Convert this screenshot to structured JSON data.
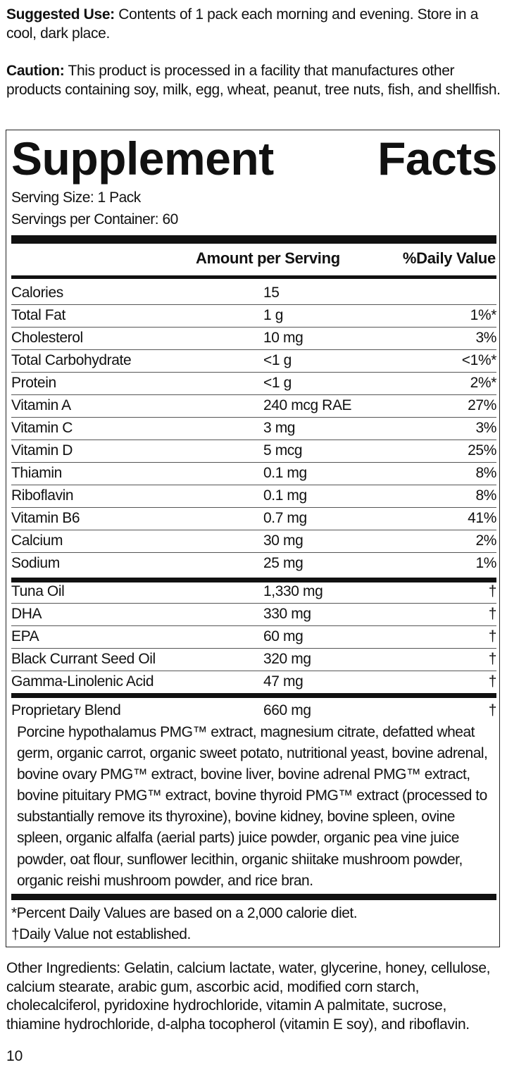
{
  "suggested_use": {
    "label": "Suggested Use:",
    "text": " Contents of 1 pack each morning and evening. Store in a cool, dark place."
  },
  "caution": {
    "label": "Caution:",
    "text": " This product is processed in a facility that manufactures other products containing soy, milk, egg, wheat, peanut, tree nuts, fish, and shellfish."
  },
  "facts": {
    "title_word1": "Supplement",
    "title_word2": "Facts",
    "serving_size": "Serving Size: 1 Pack",
    "servings_per_container": "Servings per Container: 60",
    "header_amount": "Amount per Serving",
    "header_dv": "%Daily Value",
    "rows": [
      {
        "name": "Calories",
        "amount": "15",
        "dv": ""
      },
      {
        "name": "Total Fat",
        "amount": "1 g",
        "dv": "1%*"
      },
      {
        "name": "Cholesterol",
        "amount": "10 mg",
        "dv": "3%"
      },
      {
        "name": "Total Carbohydrate",
        "amount": "<1 g",
        "dv": "<1%*"
      },
      {
        "name": "Protein",
        "amount": "<1 g",
        "dv": "2%*"
      },
      {
        "name": "Vitamin A",
        "amount": "240 mcg RAE",
        "dv": "27%"
      },
      {
        "name": "Vitamin C",
        "amount": "3 mg",
        "dv": "3%"
      },
      {
        "name": "Vitamin D",
        "amount": "5 mcg",
        "dv": "25%"
      },
      {
        "name": "Thiamin",
        "amount": "0.1 mg",
        "dv": "8%"
      },
      {
        "name": "Riboflavin",
        "amount": "0.1 mg",
        "dv": "8%"
      },
      {
        "name": "Vitamin B6",
        "amount": "0.7 mg",
        "dv": "41%"
      },
      {
        "name": "Calcium",
        "amount": "30 mg",
        "dv": "2%"
      },
      {
        "name": "Sodium",
        "amount": "25 mg",
        "dv": "1%"
      }
    ],
    "oil_rows": [
      {
        "name": "Tuna Oil",
        "amount": "1,330 mg",
        "dv": "†"
      },
      {
        "name": "DHA",
        "amount": "330 mg",
        "dv": "†"
      },
      {
        "name": "EPA",
        "amount": "60 mg",
        "dv": "†"
      },
      {
        "name": "Black Currant Seed Oil",
        "amount": "320 mg",
        "dv": "†"
      },
      {
        "name": "Gamma-Linolenic Acid",
        "amount": "47 mg",
        "dv": "†"
      }
    ],
    "blend": {
      "name": "Proprietary Blend",
      "amount": "660 mg",
      "dv": "†",
      "description": "Porcine hypothalamus PMG™ extract, magnesium citrate, defatted wheat germ, organic carrot, organic sweet potato, nutritional yeast, bovine adrenal, bovine ovary PMG™ extract, bovine liver, bovine adrenal PMG™ extract, bovine pituitary PMG™ extract, bovine thyroid PMG™ extract (processed to substantially remove its thyroxine), bovine kidney, bovine spleen, ovine spleen, organic alfalfa (aerial parts) juice powder, organic pea vine juice powder, oat flour, sunflower lecithin, organic shiitake mushroom powder, organic reishi mushroom powder, and rice bran."
    },
    "footnote_percent": "*Percent Daily Values are based on a 2,000 calorie diet.",
    "footnote_dagger": "†Daily Value not established."
  },
  "other_ingredients": "Other Ingredients: Gelatin, calcium lactate, water, glycerine, honey, cellulose, calcium stearate, arabic gum, ascorbic acid, modified corn starch, cholecalciferol, pyridoxine hydrochloride, vitamin A palmitate, sucrose, thiamine hydrochloride, d-alpha tocopherol (vitamin E soy), and riboflavin.",
  "page_number": "10"
}
